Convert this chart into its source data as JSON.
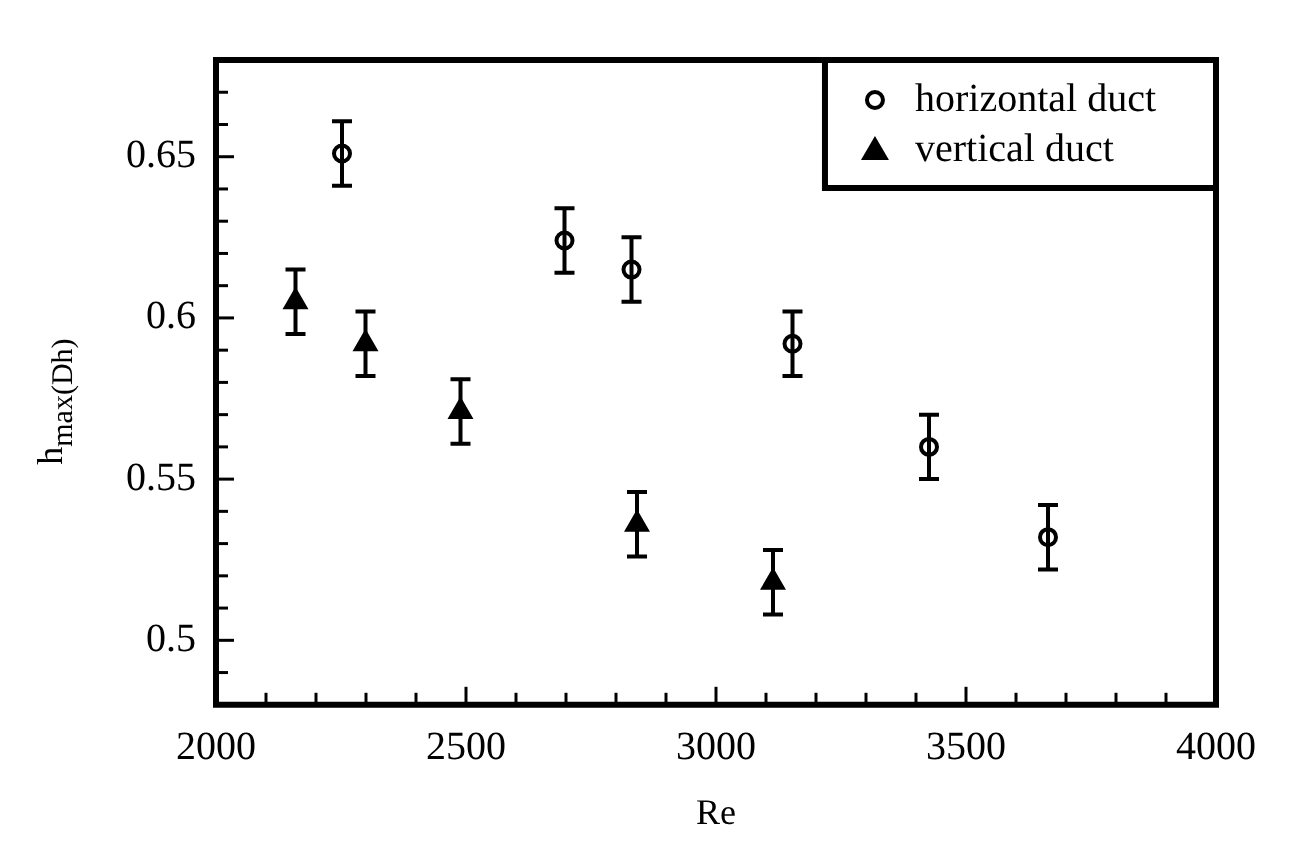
{
  "chart_data": {
    "type": "scatter",
    "xlabel": "Re",
    "ylabel": "h$_{max(Dh)}$",
    "xlim": [
      2000,
      4000
    ],
    "ylim": [
      0.48,
      0.68
    ],
    "xticks": [
      2000,
      {
        "value": 2100,
        "label": null
      },
      {
        "value": 2200,
        "label": null
      },
      {
        "value": 2300,
        "label": null
      },
      {
        "value": 2400,
        "label": null
      },
      2500,
      {
        "value": 2600,
        "label": null
      },
      {
        "value": 2700,
        "label": null
      },
      {
        "value": 2800,
        "label": null
      },
      {
        "value": 2900,
        "label": null
      },
      3000,
      {
        "value": 3100,
        "label": null
      },
      {
        "value": 3200,
        "label": null
      },
      {
        "value": 3300,
        "label": null
      },
      {
        "value": 3400,
        "label": null
      },
      3500,
      {
        "value": 3600,
        "label": null
      },
      {
        "value": 3700,
        "label": null
      },
      {
        "value": 3800,
        "label": null
      },
      {
        "value": 3900,
        "label": null
      },
      4000
    ],
    "yticks": [
      {
        "value": 0.48,
        "label": null
      },
      {
        "value": 0.49,
        "label": null
      },
      0.5,
      {
        "value": 0.51,
        "label": null
      },
      {
        "value": 0.52,
        "label": null
      },
      {
        "value": 0.53,
        "label": null
      },
      {
        "value": 0.54,
        "label": null
      },
      0.55,
      {
        "value": 0.56,
        "label": null
      },
      {
        "value": 0.57,
        "label": null
      },
      {
        "value": 0.58,
        "label": null
      },
      {
        "value": 0.59,
        "label": null
      },
      0.6,
      {
        "value": 0.61,
        "label": null
      },
      {
        "value": 0.62,
        "label": null
      },
      {
        "value": 0.63,
        "label": null
      },
      {
        "value": 0.64,
        "label": null
      },
      0.65,
      {
        "value": 0.66,
        "label": null
      },
      {
        "value": 0.67,
        "label": null
      },
      {
        "value": 0.68,
        "label": null
      }
    ],
    "legend": "top right",
    "grid": false,
    "series": [
      {
        "name": "horizontal duct",
        "color": "#000000",
        "marker": "circle",
        "x": [
          2252,
          2697,
          2831,
          3153,
          3426,
          3664
        ],
        "values": [
          0.651,
          0.624,
          0.615,
          0.592,
          0.56,
          0.532
        ],
        "errors": [
          0.01,
          0.01,
          0.01,
          0.01,
          0.01,
          0.01
        ]
      },
      {
        "name": "vertical duct",
        "color": "#000000",
        "marker": "triangle",
        "x": [
          2159,
          2299,
          2489,
          2842,
          3114
        ],
        "values": [
          0.605,
          0.592,
          0.571,
          0.536,
          0.518
        ],
        "errors": [
          0.01,
          0.01,
          0.01,
          0.01,
          0.01
        ]
      }
    ]
  }
}
